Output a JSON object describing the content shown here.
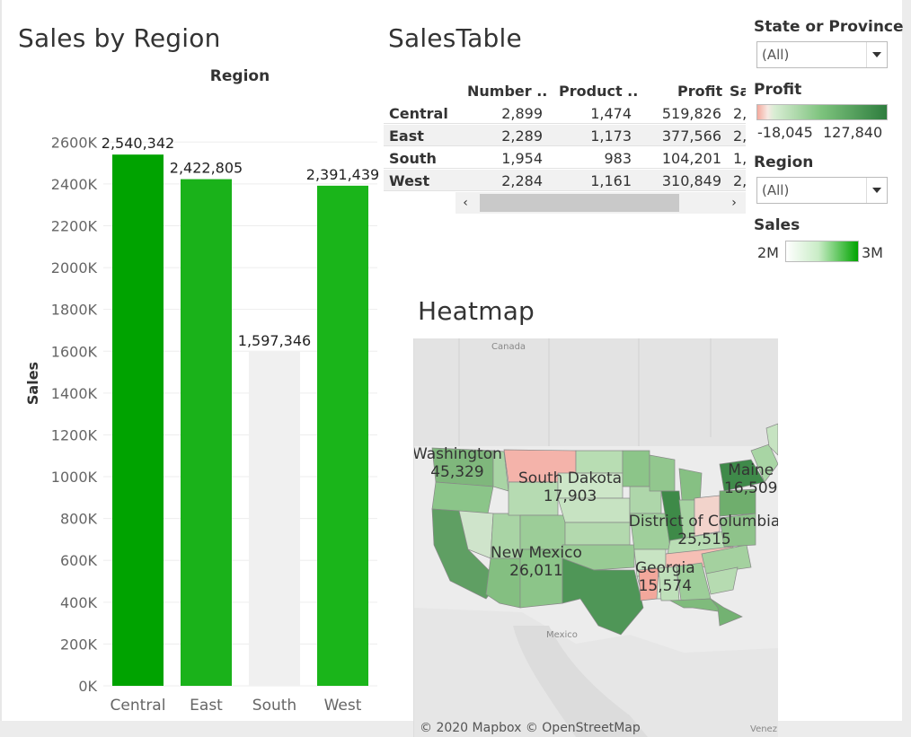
{
  "dashboard": {
    "bar_title": "Sales by Region",
    "table_title": "SalesTable",
    "map_title": "Heatmap"
  },
  "chart_data": {
    "type": "bar",
    "title": "Sales by Region",
    "header_label": "Region",
    "ylabel": "Sales",
    "xlabel": "",
    "categories": [
      "Central",
      "East",
      "South",
      "West"
    ],
    "values": [
      2540342,
      2422805,
      1597346,
      2391439
    ],
    "value_labels": [
      "2,540,342",
      "2,422,805",
      "1,597,346",
      "2,391,439"
    ],
    "bar_colors": [
      "#00a300",
      "#1ab21a",
      "#f0f0f0",
      "#1ab51a"
    ],
    "ylim": [
      0,
      2700000
    ],
    "yticks": [
      0,
      200000,
      400000,
      600000,
      800000,
      1000000,
      1200000,
      1400000,
      1600000,
      1800000,
      2000000,
      2200000,
      2400000,
      2600000
    ],
    "ytick_labels": [
      "0K",
      "200K",
      "400K",
      "600K",
      "800K",
      "1000K",
      "1200K",
      "1400K",
      "1600K",
      "1800K",
      "2000K",
      "2200K",
      "2400K",
      "2600K"
    ],
    "grid": true
  },
  "sales_table": {
    "columns": [
      "Number ..",
      "Product ..",
      "Profit",
      "Sa"
    ],
    "rows": [
      {
        "region": "Central",
        "number": "2,899",
        "product": "1,474",
        "profit": "519,826",
        "sales": "2,"
      },
      {
        "region": "East",
        "number": "2,289",
        "product": "1,173",
        "profit": "377,566",
        "sales": "2,"
      },
      {
        "region": "South",
        "number": "1,954",
        "product": "983",
        "profit": "104,201",
        "sales": "1,"
      },
      {
        "region": "West",
        "number": "2,284",
        "product": "1,161",
        "profit": "310,849",
        "sales": "2,"
      }
    ],
    "scroll_left": "‹",
    "scroll_right": "›"
  },
  "filters": {
    "state": {
      "label": "State or Province",
      "value": "(All)"
    },
    "profit_legend": {
      "label": "Profit",
      "min": "-18,045",
      "max": "127,840",
      "colors": [
        "#f4a99d",
        "#d9edd4",
        "#2e7d3e"
      ]
    },
    "region": {
      "label": "Region",
      "value": "(All)"
    },
    "sales_legend": {
      "label": "Sales",
      "min": "2M",
      "max": "3M",
      "colors": [
        "#ffffff",
        "#00a400"
      ]
    }
  },
  "map": {
    "labels": [
      {
        "name": "Washington",
        "value": "45,329"
      },
      {
        "name": "South Dakota",
        "value": "17,903"
      },
      {
        "name": "Maine",
        "value": "16,509"
      },
      {
        "name": "District of Columbia",
        "value": "25,515"
      },
      {
        "name": "New Mexico",
        "value": "26,011"
      },
      {
        "name": "Georgia",
        "value": "15,574"
      }
    ],
    "basemap_labels": {
      "canada": "Canada",
      "mexico": "Mexico",
      "venezuela": "Venez"
    },
    "attribution": "© 2020 Mapbox © OpenStreetMap"
  }
}
